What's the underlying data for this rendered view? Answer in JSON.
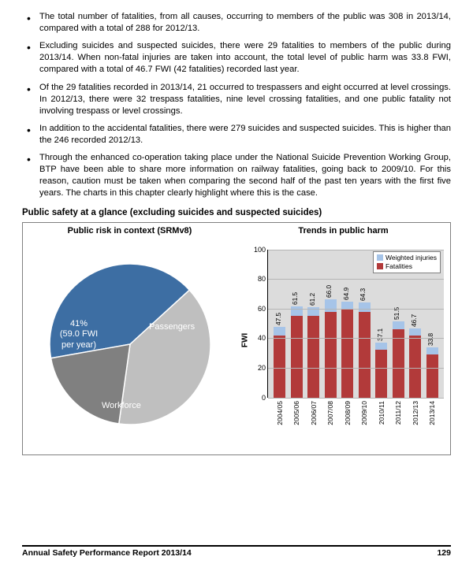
{
  "bullets": [
    "The total number of fatalities, from all causes, occurring to members of the public was 308 in 2013/14, compared with a total of 288 for 2012/13.",
    "Excluding suicides and suspected suicides, there were 29 fatalities to members of the public during 2013/14. When non-fatal injuries are taken into account, the total level of public harm was 33.8 FWI, compared with a total of 46.7 FWI (42 fatalities) recorded last year.",
    "Of the 29 fatalities recorded in 2013/14, 21 occurred to trespassers and eight occurred at level crossings. In 2012/13, there were 32 trespass fatalities, nine level crossing fatalities, and one public fatality not involving trespass or level crossings.",
    "In addition to the accidental fatalities, there were 279 suicides and suspected suicides. This is higher than the 246 recorded 2012/13.",
    "Through the enhanced co-operation taking place under the National Suicide Prevention Working Group, BTP have been able to share more information on railway fatalities, going back to 2009/10. For this reason, caution must be taken when comparing the second half of the past ten years with the first five years. The charts in this chapter clearly highlight where this is the case."
  ],
  "section_title": "Public safety at a glance (excluding suicides and suspected suicides)",
  "pie_chart": {
    "title": "Public risk in context (SRMv8)",
    "type": "pie",
    "background": "#ffffff",
    "slices": [
      {
        "label_line1": "41%",
        "label_line2": "(59.0 FWI",
        "label_line3": "per year)",
        "value": 41,
        "color": "#3d6ea3"
      },
      {
        "label": "Passengers",
        "value": 39,
        "color": "#bfbfbf"
      },
      {
        "label": "Workforce",
        "value": 20,
        "color": "#808080"
      }
    ]
  },
  "bar_chart": {
    "title": "Trends in public harm",
    "type": "stacked-bar",
    "y_label": "FWI",
    "y_max": 100,
    "y_ticks": [
      0,
      20,
      40,
      60,
      80,
      100
    ],
    "plot_background": "#dcdcdc",
    "grid_color": "#b5b5b5",
    "legend": [
      {
        "label": "Weighted injuries",
        "color": "#a6c4e8"
      },
      {
        "label": "Fatalities",
        "color": "#b23a3a"
      }
    ],
    "categories": [
      "2004/05",
      "2005/06",
      "2006/07",
      "2007/08",
      "2008/09",
      "2009/10",
      "2010/11",
      "2011/12",
      "2012/13",
      "2013/14"
    ],
    "series": {
      "fatalities": [
        42,
        55,
        55,
        58,
        60,
        58,
        32,
        46,
        42,
        29
      ],
      "weighted_injuries": [
        5.5,
        6.5,
        6.2,
        8.0,
        4.9,
        6.3,
        5.1,
        5.5,
        4.7,
        4.8
      ]
    },
    "totals": [
      "47.5",
      "61.5",
      "61.2",
      "66.0",
      "64.9",
      "64.3",
      "37.1",
      "51.5",
      "46.7",
      "33.8"
    ],
    "colors": {
      "fatalities": "#b23a3a",
      "weighted_injuries": "#a6c4e8"
    }
  },
  "footer": {
    "title": "Annual Safety Performance Report 2013/14",
    "page": "129"
  }
}
